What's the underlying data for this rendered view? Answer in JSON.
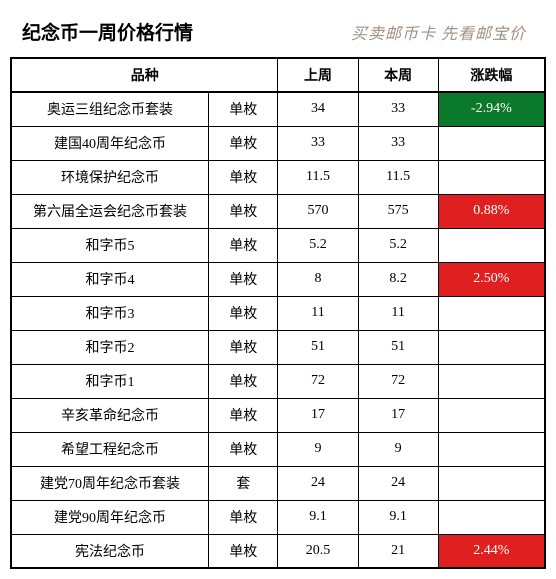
{
  "title": "纪念币一周价格行情",
  "tagline": "买卖邮币卡 先看邮宝价",
  "columns": {
    "name": "品种",
    "last_week": "上周",
    "this_week": "本周",
    "change": "涨跌幅"
  },
  "colors": {
    "down_bg": "#0a7a2a",
    "up_bg": "#e02020",
    "text": "#000000",
    "change_text": "#ffffff"
  },
  "rows": [
    {
      "name": "奥运三组纪念币套装",
      "unit": "单枚",
      "last": "34",
      "this": "33",
      "change": "-2.94%",
      "dir": "down"
    },
    {
      "name": "建国40周年纪念币",
      "unit": "单枚",
      "last": "33",
      "this": "33",
      "change": "",
      "dir": ""
    },
    {
      "name": "环境保护纪念币",
      "unit": "单枚",
      "last": "11.5",
      "this": "11.5",
      "change": "",
      "dir": ""
    },
    {
      "name": "第六届全运会纪念币套装",
      "unit": "单枚",
      "last": "570",
      "this": "575",
      "change": "0.88%",
      "dir": "up"
    },
    {
      "name": "和字币5",
      "unit": "单枚",
      "last": "5.2",
      "this": "5.2",
      "change": "",
      "dir": ""
    },
    {
      "name": "和字币4",
      "unit": "单枚",
      "last": "8",
      "this": "8.2",
      "change": "2.50%",
      "dir": "up"
    },
    {
      "name": "和字币3",
      "unit": "单枚",
      "last": "11",
      "this": "11",
      "change": "",
      "dir": ""
    },
    {
      "name": "和字币2",
      "unit": "单枚",
      "last": "51",
      "this": "51",
      "change": "",
      "dir": ""
    },
    {
      "name": "和字币1",
      "unit": "单枚",
      "last": "72",
      "this": "72",
      "change": "",
      "dir": ""
    },
    {
      "name": "辛亥革命纪念币",
      "unit": "单枚",
      "last": "17",
      "this": "17",
      "change": "",
      "dir": ""
    },
    {
      "name": "希望工程纪念币",
      "unit": "单枚",
      "last": "9",
      "this": "9",
      "change": "",
      "dir": ""
    },
    {
      "name": "建党70周年纪念币套装",
      "unit": "套",
      "last": "24",
      "this": "24",
      "change": "",
      "dir": ""
    },
    {
      "name": "建党90周年纪念币",
      "unit": "单枚",
      "last": "9.1",
      "this": "9.1",
      "change": "",
      "dir": ""
    },
    {
      "name": "宪法纪念币",
      "unit": "单枚",
      "last": "20.5",
      "this": "21",
      "change": "2.44%",
      "dir": "up"
    }
  ]
}
